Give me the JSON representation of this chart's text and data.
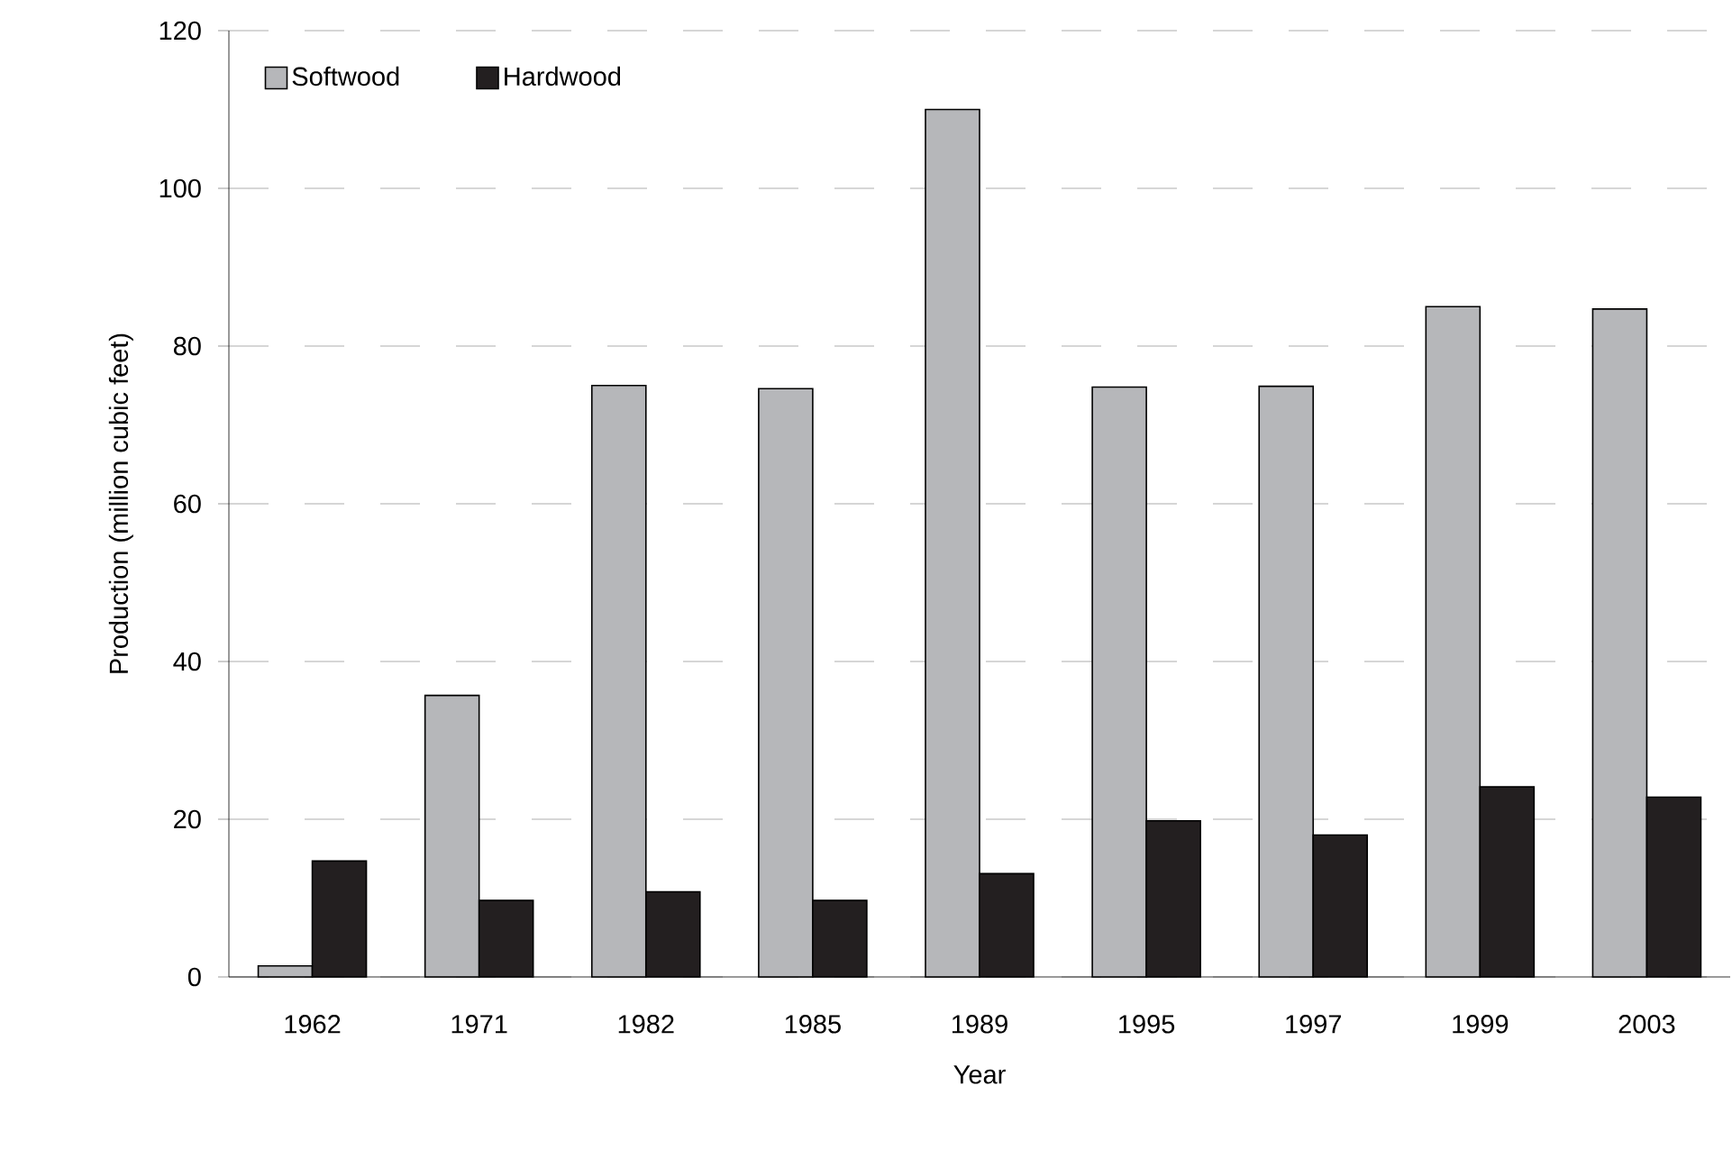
{
  "chart_data": {
    "type": "bar",
    "xlabel": "Year",
    "ylabel": "Production (million cubic feet)",
    "categories": [
      "1962",
      "1971",
      "1982",
      "1985",
      "1989",
      "1995",
      "1997",
      "1999",
      "2003"
    ],
    "series": [
      {
        "name": "Softwood",
        "color": "#b6b7ba",
        "values": [
          1.4,
          35.7,
          75.0,
          74.6,
          110.0,
          74.8,
          74.9,
          85.0,
          84.7
        ]
      },
      {
        "name": "Hardwood",
        "color": "#231f20",
        "values": [
          14.7,
          9.7,
          10.8,
          9.7,
          13.1,
          19.8,
          18.0,
          24.1,
          22.8
        ]
      }
    ],
    "ylim": [
      0,
      120
    ],
    "yticks": [
      0,
      20,
      40,
      60,
      80,
      100,
      120
    ],
    "grid": "y",
    "legend": "top left"
  }
}
